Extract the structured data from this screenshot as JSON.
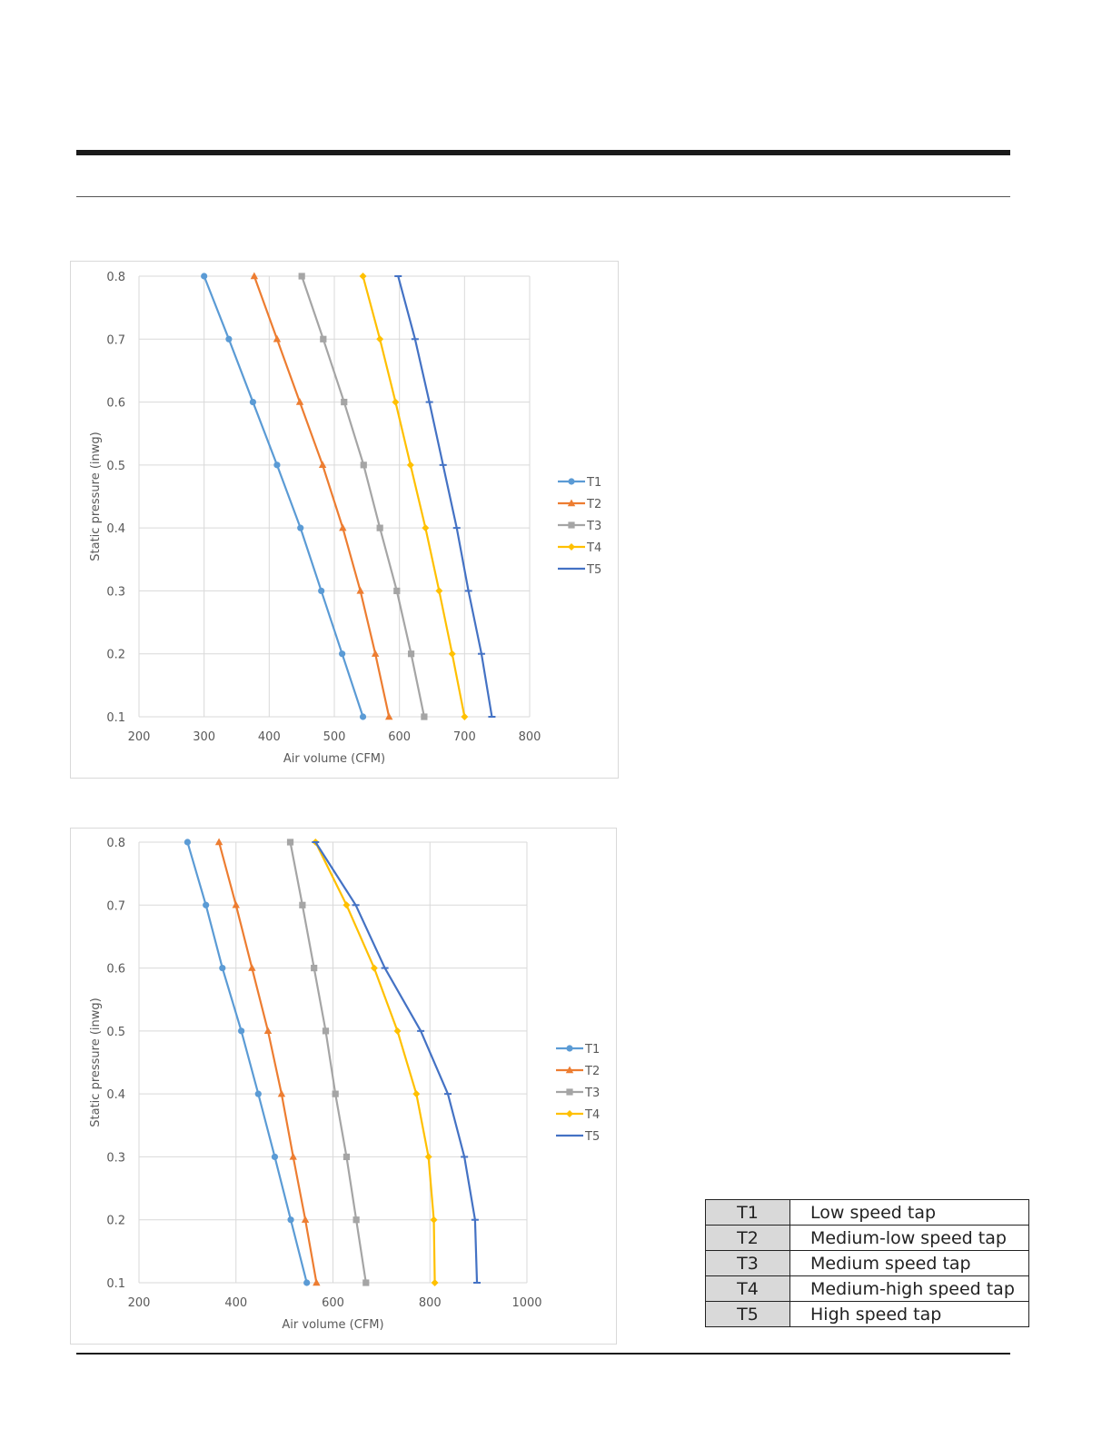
{
  "chart_data": [
    {
      "type": "line",
      "title": "",
      "xlabel": "Air volume (CFM)",
      "ylabel": "Static pressure (inwg)",
      "xlim": [
        200,
        800
      ],
      "ylim": [
        0.1,
        0.8
      ],
      "xticks": [
        "200",
        "300",
        "400",
        "500",
        "600",
        "700",
        "800"
      ],
      "yticks": [
        "0.1",
        "0.2",
        "0.3",
        "0.4",
        "0.5",
        "0.6",
        "0.7",
        "0.8"
      ],
      "grid": true,
      "legend": "right",
      "series": [
        {
          "name": "T1",
          "color": "#5b9bd5",
          "marker": "circle",
          "points": [
            [
              300,
              0.8
            ],
            [
              338,
              0.7
            ],
            [
              375,
              0.6
            ],
            [
              412,
              0.5
            ],
            [
              448,
              0.4
            ],
            [
              480,
              0.3
            ],
            [
              512,
              0.2
            ],
            [
              544,
              0.1
            ]
          ]
        },
        {
          "name": "T2",
          "color": "#ed7d31",
          "marker": "triangle",
          "points": [
            [
              377,
              0.8
            ],
            [
              412,
              0.7
            ],
            [
              447,
              0.6
            ],
            [
              482,
              0.5
            ],
            [
              513,
              0.4
            ],
            [
              540,
              0.3
            ],
            [
              563,
              0.2
            ],
            [
              584,
              0.1
            ]
          ]
        },
        {
          "name": "T3",
          "color": "#a5a5a5",
          "marker": "square",
          "points": [
            [
              450,
              0.8
            ],
            [
              483,
              0.7
            ],
            [
              515,
              0.6
            ],
            [
              545,
              0.5
            ],
            [
              570,
              0.4
            ],
            [
              596,
              0.3
            ],
            [
              618,
              0.2
            ],
            [
              638,
              0.1
            ]
          ]
        },
        {
          "name": "T4",
          "color": "#ffc000",
          "marker": "diamond",
          "points": [
            [
              544,
              0.8
            ],
            [
              570,
              0.7
            ],
            [
              594,
              0.6
            ],
            [
              617,
              0.5
            ],
            [
              640,
              0.4
            ],
            [
              661,
              0.3
            ],
            [
              681,
              0.2
            ],
            [
              700,
              0.1
            ]
          ]
        },
        {
          "name": "T5",
          "color": "#4472c4",
          "marker": "dash",
          "points": [
            [
              598,
              0.8
            ],
            [
              624,
              0.7
            ],
            [
              646,
              0.6
            ],
            [
              667,
              0.5
            ],
            [
              688,
              0.4
            ],
            [
              706,
              0.3
            ],
            [
              726,
              0.2
            ],
            [
              742,
              0.1
            ]
          ]
        }
      ]
    },
    {
      "type": "line",
      "title": "",
      "xlabel": "Air volume (CFM)",
      "ylabel": "Static pressure (inwg)",
      "xlim": [
        200,
        1000
      ],
      "ylim": [
        0.1,
        0.8
      ],
      "xticks": [
        "200",
        "400",
        "600",
        "800",
        "1000"
      ],
      "yticks": [
        "0.1",
        "0.2",
        "0.3",
        "0.4",
        "0.5",
        "0.6",
        "0.7",
        "0.8"
      ],
      "grid": true,
      "legend": "right",
      "series": [
        {
          "name": "T1",
          "color": "#5b9bd5",
          "marker": "circle",
          "points": [
            [
              300,
              0.8
            ],
            [
              338,
              0.7
            ],
            [
              372,
              0.6
            ],
            [
              411,
              0.5
            ],
            [
              446,
              0.4
            ],
            [
              480,
              0.3
            ],
            [
              513,
              0.2
            ],
            [
              546,
              0.1
            ]
          ]
        },
        {
          "name": "T2",
          "color": "#ed7d31",
          "marker": "triangle",
          "points": [
            [
              365,
              0.8
            ],
            [
              400,
              0.7
            ],
            [
              433,
              0.6
            ],
            [
              466,
              0.5
            ],
            [
              494,
              0.4
            ],
            [
              518,
              0.3
            ],
            [
              543,
              0.2
            ],
            [
              566,
              0.1
            ]
          ]
        },
        {
          "name": "T3",
          "color": "#a5a5a5",
          "marker": "square",
          "points": [
            [
              512,
              0.8
            ],
            [
              537,
              0.7
            ],
            [
              561,
              0.6
            ],
            [
              585,
              0.5
            ],
            [
              605,
              0.4
            ],
            [
              628,
              0.3
            ],
            [
              648,
              0.2
            ],
            [
              668,
              0.1
            ]
          ]
        },
        {
          "name": "T4",
          "color": "#ffc000",
          "marker": "diamond",
          "points": [
            [
              564,
              0.8
            ],
            [
              628,
              0.7
            ],
            [
              685,
              0.6
            ],
            [
              733,
              0.5
            ],
            [
              772,
              0.4
            ],
            [
              797,
              0.3
            ],
            [
              808,
              0.2
            ],
            [
              810,
              0.1
            ]
          ]
        },
        {
          "name": "T5",
          "color": "#4472c4",
          "marker": "dash",
          "points": [
            [
              564,
              0.8
            ],
            [
              647,
              0.7
            ],
            [
              707,
              0.6
            ],
            [
              781,
              0.5
            ],
            [
              837,
              0.4
            ],
            [
              871,
              0.3
            ],
            [
              893,
              0.2
            ],
            [
              897,
              0.1
            ]
          ]
        }
      ]
    }
  ],
  "tap_table": [
    {
      "code": "T1",
      "description": "Low speed tap"
    },
    {
      "code": "T2",
      "description": "Medium-low speed tap"
    },
    {
      "code": "T3",
      "description": "Medium speed tap"
    },
    {
      "code": "T4",
      "description": "Medium-high speed tap"
    },
    {
      "code": "T5",
      "description": "High speed tap"
    }
  ]
}
